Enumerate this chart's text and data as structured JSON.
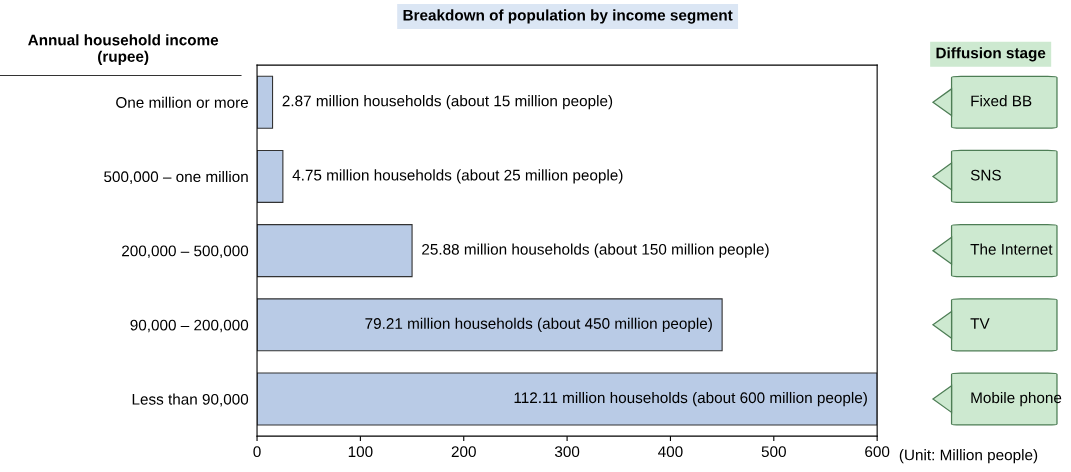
{
  "chart_data": {
    "type": "bar",
    "orientation": "horizontal",
    "title": "Breakdown of population by income segment",
    "ylabel": "Annual household income\n(rupee)",
    "categories": [
      "One million or more",
      "500,000 – one million",
      "200,000 – 500,000",
      "90,000 – 200,000",
      "Less than 90,000"
    ],
    "values": [
      15,
      25,
      150,
      450,
      600
    ],
    "color": "#b9cbe6",
    "xlim": [
      0,
      600
    ],
    "xticks": [
      0,
      100,
      200,
      300,
      400,
      500,
      600
    ],
    "grid": false,
    "legend": false,
    "annotations": [
      "(Unit: Million people)",
      "Diffusion stage",
      "Fixed BB",
      "SNS",
      "The Internet",
      "TV",
      "Mobile phone",
      {
        "text": "2.87 million households (about 15 million people)",
        "x": 15,
        "y": "One million or more"
      },
      {
        "text": "4.75 million households (about 25 million people)",
        "x": 25,
        "y": "500,000 – one million"
      },
      {
        "text": "25.88 million households (about 150 million people)",
        "x": 150,
        "y": "200,000 – 500,000"
      },
      {
        "text": "79.21 million households (about 450 million people)",
        "x": 450,
        "y": "90,000 – 200,000"
      },
      {
        "text": "112.11 million households (about 600 million people)",
        "x": 600,
        "y": "Less than 90,000"
      }
    ]
  }
}
